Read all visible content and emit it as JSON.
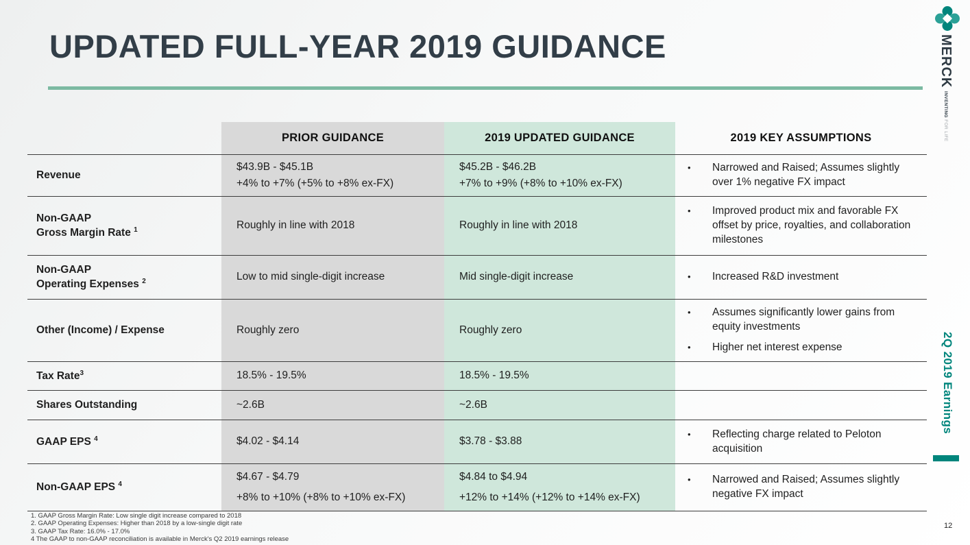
{
  "slide": {
    "title": "UPDATED FULL-YEAR 2019 GUIDANCE",
    "page_number": "12"
  },
  "branding": {
    "company": "MERCK",
    "tagline_strong": "INVENTING",
    "tagline_light": " FOR LIFE",
    "deck_label": "2Q 2019 Earnings",
    "logo_icon": "merck-petal-logo"
  },
  "colors": {
    "accent_teal": "#00857c",
    "divider_green": "#7cbaa2",
    "prior_bg": "#d9d9d9",
    "updated_bg": "#cfe7db",
    "title_color": "#323e48",
    "row_line": "#3c3c3c"
  },
  "table": {
    "headers": {
      "label": "",
      "prior": "PRIOR GUIDANCE",
      "updated": "2019 UPDATED GUIDANCE",
      "assumptions": "2019 KEY ASSUMPTIONS"
    },
    "rows": [
      {
        "label_lines": [
          "Revenue"
        ],
        "label_sup": "",
        "prior_lines": [
          "$43.9B - $45.1B",
          "+4% to +7% (+5% to +8% ex-FX)"
        ],
        "updated_lines": [
          "$45.2B - $46.2B",
          "+7% to +9% (+8% to +10% ex-FX)"
        ],
        "assumption_bullets": [
          "Narrowed and Raised; Assumes slightly over 1% negative FX impact"
        ]
      },
      {
        "label_lines": [
          "Non-GAAP",
          "Gross Margin Rate "
        ],
        "label_sup": "1",
        "prior_lines": [
          "Roughly in line with 2018"
        ],
        "updated_lines": [
          "Roughly in line with 2018"
        ],
        "assumption_bullets": [
          "Improved product mix and favorable FX offset by price, royalties, and collaboration milestones"
        ]
      },
      {
        "label_lines": [
          "Non-GAAP",
          "Operating Expenses "
        ],
        "label_sup": "2",
        "prior_lines": [
          "Low to mid single-digit increase"
        ],
        "updated_lines": [
          "Mid single-digit increase"
        ],
        "assumption_bullets": [
          "Increased R&D investment"
        ]
      },
      {
        "label_lines": [
          "Other (Income) / Expense"
        ],
        "label_sup": "",
        "prior_lines": [
          "Roughly zero"
        ],
        "updated_lines": [
          "Roughly zero"
        ],
        "assumption_bullets": [
          "Assumes significantly lower gains from equity investments",
          "Higher net interest expense"
        ]
      },
      {
        "label_lines": [
          "Tax Rate"
        ],
        "label_sup": "3",
        "prior_lines": [
          "18.5% - 19.5%"
        ],
        "updated_lines": [
          "18.5% - 19.5%"
        ],
        "assumption_bullets": []
      },
      {
        "label_lines": [
          "Shares Outstanding"
        ],
        "label_sup": "",
        "prior_lines": [
          "~2.6B"
        ],
        "updated_lines": [
          "~2.6B"
        ],
        "assumption_bullets": []
      },
      {
        "label_lines": [
          "GAAP EPS "
        ],
        "label_sup": "4",
        "prior_lines": [
          "$4.02 - $4.14"
        ],
        "updated_lines": [
          "$3.78 - $3.88"
        ],
        "assumption_bullets": [
          "Reflecting charge related to Peloton acquisition"
        ]
      },
      {
        "label_lines": [
          "Non-GAAP EPS "
        ],
        "label_sup": "4",
        "prior_lines": [
          "$4.67 - $4.79",
          "+8% to +10% (+8% to +10% ex-FX)"
        ],
        "updated_lines": [
          "$4.84 to $4.94",
          "+12% to +14% (+12% to +14% ex-FX)"
        ],
        "assumption_bullets": [
          "Narrowed and Raised; Assumes slightly negative FX impact"
        ]
      }
    ]
  },
  "footnotes": [
    "1. GAAP Gross Margin Rate:  Low single digit increase compared to 2018",
    "2.  GAAP Operating Expenses:  Higher than 2018 by a low-single digit rate",
    "3.  GAAP Tax Rate: 16.0% - 17.0%",
    "4  The GAAP to non-GAAP reconciliation is available in Merck's Q2 2019 earnings release"
  ]
}
